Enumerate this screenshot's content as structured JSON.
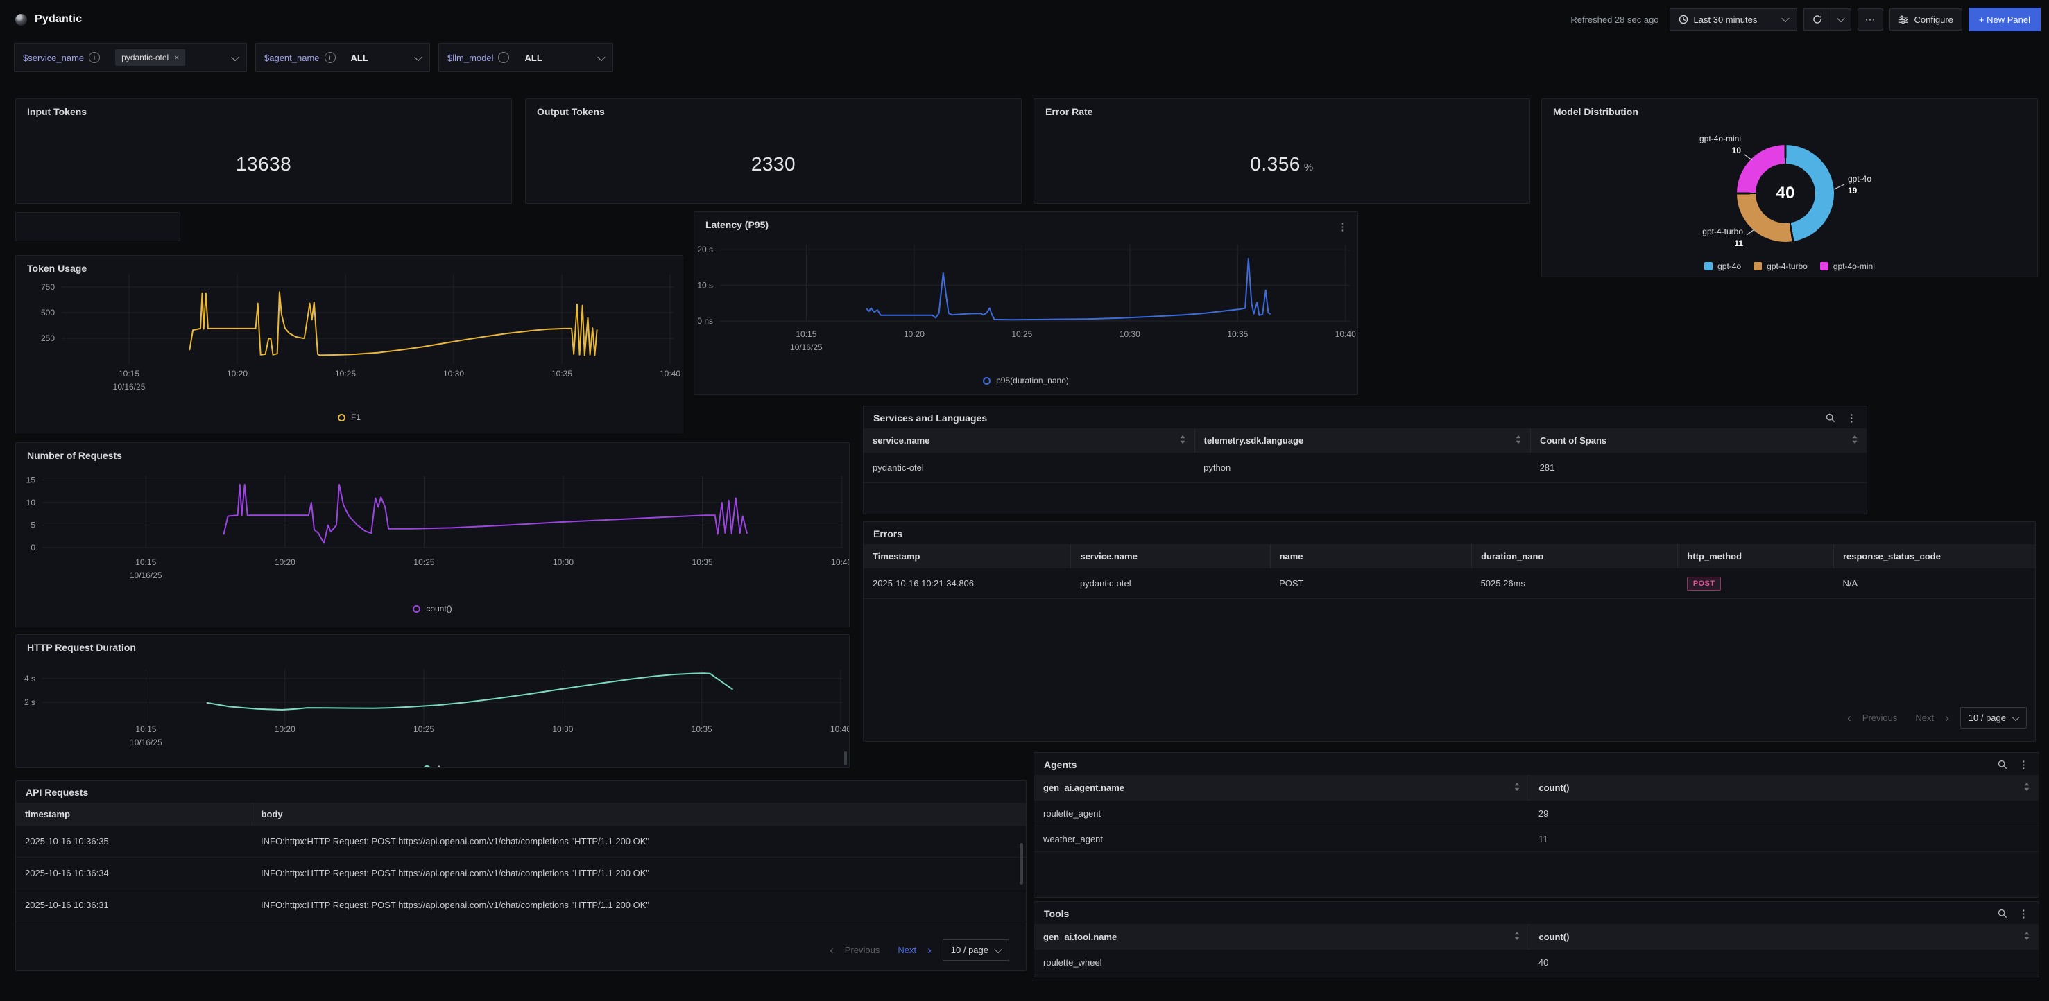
{
  "header": {
    "title": "Pydantic",
    "refreshed": "Refreshed 28 sec ago",
    "time_range": "Last 30 minutes",
    "configure": "Configure",
    "new_panel": "+ New Panel"
  },
  "icons": {
    "more": "⋯",
    "kebab": "⋮",
    "close": "×",
    "prev_chevron": "‹",
    "next_chevron": "›"
  },
  "filters": {
    "service": {
      "label": "$service_name",
      "chip": "pydantic-otel"
    },
    "agent": {
      "label": "$agent_name",
      "value": "ALL"
    },
    "llm": {
      "label": "$llm_model",
      "value": "ALL"
    }
  },
  "stats": {
    "input_tokens": {
      "title": "Input Tokens",
      "value": "13638"
    },
    "output_tokens": {
      "title": "Output Tokens",
      "value": "2330"
    },
    "error_rate": {
      "title": "Error Rate",
      "value": "0.356",
      "unit": "%"
    }
  },
  "chart_data": {
    "model_distribution": {
      "type": "donut",
      "title": "Model Distribution",
      "center_total": "40",
      "slices": [
        {
          "label": "gpt-4o",
          "value": 19,
          "color": "#4fb1e4"
        },
        {
          "label": "gpt-4-turbo",
          "value": 11,
          "color": "#cf9350"
        },
        {
          "label": "gpt-4o-mini",
          "value": 10,
          "color": "#e23fe5"
        }
      ],
      "legend_position": "bottom"
    },
    "token_usage": {
      "type": "line",
      "title": "Token Usage",
      "legend": "F1",
      "color": "#eab839",
      "x_domain": [
        11.89,
        40.16
      ],
      "y_domain": [
        0,
        871
      ],
      "x_ticks": [
        15,
        20,
        25,
        30,
        35,
        40
      ],
      "x_tick_labels": [
        "10:15",
        "10:20",
        "10:25",
        "10:30",
        "10:35",
        "10:40"
      ],
      "x_sub_label": "10/16/25",
      "y_ticks": [
        {
          "v": 250,
          "label": "250"
        },
        {
          "v": 500,
          "label": "500"
        },
        {
          "v": 750,
          "label": "750"
        }
      ],
      "points": [
        [
          17.8,
          140
        ],
        [
          17.95,
          330
        ],
        [
          18.3,
          345
        ],
        [
          18.38,
          690
        ],
        [
          18.45,
          340
        ],
        [
          18.55,
          690
        ],
        [
          18.65,
          345
        ],
        [
          20.85,
          345
        ],
        [
          20.95,
          590
        ],
        [
          21.02,
          300
        ],
        [
          21.08,
          90
        ],
        [
          21.3,
          95
        ],
        [
          21.45,
          250
        ],
        [
          21.55,
          245
        ],
        [
          21.65,
          90
        ],
        [
          21.85,
          100
        ],
        [
          21.95,
          700
        ],
        [
          22.05,
          480
        ],
        [
          22.2,
          350
        ],
        [
          22.4,
          300
        ],
        [
          22.7,
          265
        ],
        [
          23.0,
          252
        ],
        [
          23.1,
          250
        ],
        [
          23.25,
          450
        ],
        [
          23.35,
          590
        ],
        [
          23.45,
          430
        ],
        [
          23.55,
          600
        ],
        [
          23.65,
          300
        ],
        [
          23.72,
          95
        ],
        [
          23.8,
          85
        ],
        [
          24.5,
          88
        ],
        [
          25.5,
          95
        ],
        [
          26.5,
          110
        ],
        [
          27.5,
          135
        ],
        [
          28.5,
          165
        ],
        [
          29.5,
          200
        ],
        [
          30.5,
          235
        ],
        [
          31.5,
          268
        ],
        [
          32.5,
          298
        ],
        [
          33.5,
          322
        ],
        [
          34.3,
          338
        ],
        [
          35.1,
          345
        ],
        [
          35.45,
          345
        ],
        [
          35.55,
          95
        ],
        [
          35.7,
          580
        ],
        [
          35.82,
          90
        ],
        [
          35.95,
          570
        ],
        [
          36.05,
          85
        ],
        [
          36.2,
          450
        ],
        [
          36.3,
          90
        ],
        [
          36.42,
          350
        ],
        [
          36.52,
          85
        ],
        [
          36.62,
          330
        ]
      ]
    },
    "latency_p95": {
      "type": "line",
      "title": "Latency (P95)",
      "legend": "p95(duration_nano)",
      "color": "#3f6bd9",
      "x_domain": [
        11.0,
        40.2
      ],
      "y_domain": [
        0,
        21.4
      ],
      "x_ticks": [
        15,
        20,
        25,
        30,
        35,
        40
      ],
      "x_tick_labels": [
        "10:15",
        "10:20",
        "10:25",
        "10:30",
        "10:35",
        "10:40"
      ],
      "x_sub_label": "10/16/25",
      "y_ticks": [
        {
          "v": 0,
          "label": "0 ns"
        },
        {
          "v": 10,
          "label": "10 s"
        },
        {
          "v": 20,
          "label": "20 s"
        }
      ],
      "points": [
        [
          17.8,
          3.4
        ],
        [
          17.9,
          2.7
        ],
        [
          18.0,
          3.6
        ],
        [
          18.15,
          2.5
        ],
        [
          18.3,
          3.1
        ],
        [
          18.45,
          1.6
        ],
        [
          19.0,
          1.6
        ],
        [
          20.85,
          1.6
        ],
        [
          21.0,
          0.9
        ],
        [
          21.15,
          2.2
        ],
        [
          21.35,
          13.5
        ],
        [
          21.5,
          6.5
        ],
        [
          21.6,
          2.2
        ],
        [
          21.75,
          1.7
        ],
        [
          22.0,
          1.8
        ],
        [
          22.4,
          2.0
        ],
        [
          22.9,
          2.1
        ],
        [
          23.1,
          2.1
        ],
        [
          23.2,
          1.7
        ],
        [
          23.35,
          2.2
        ],
        [
          23.5,
          3.6
        ],
        [
          23.6,
          1.9
        ],
        [
          23.72,
          0.4
        ],
        [
          24.5,
          0.35
        ],
        [
          26,
          0.4
        ],
        [
          28,
          0.55
        ],
        [
          29.5,
          0.8
        ],
        [
          31,
          1.2
        ],
        [
          32.5,
          1.7
        ],
        [
          33.5,
          2.2
        ],
        [
          34.5,
          2.9
        ],
        [
          35.1,
          3.3
        ],
        [
          35.35,
          3.6
        ],
        [
          35.5,
          17.5
        ],
        [
          35.65,
          4.8
        ],
        [
          35.75,
          2.0
        ],
        [
          35.9,
          5.2
        ],
        [
          36.0,
          1.6
        ],
        [
          36.15,
          1.8
        ],
        [
          36.3,
          8.6
        ],
        [
          36.42,
          2.3
        ],
        [
          36.5,
          2.0
        ]
      ]
    },
    "number_of_requests": {
      "type": "line",
      "title": "Number of Requests",
      "legend": "count()",
      "color": "#9c46e0",
      "x_domain": [
        11.28,
        40.07
      ],
      "y_domain": [
        0,
        16
      ],
      "x_ticks": [
        15,
        20,
        25,
        30,
        35,
        40
      ],
      "x_tick_labels": [
        "10:15",
        "10:20",
        "10:25",
        "10:30",
        "10:35",
        "10:40"
      ],
      "x_sub_label": "10/16/25",
      "y_ticks": [
        {
          "v": 0,
          "label": "0"
        },
        {
          "v": 5,
          "label": "5"
        },
        {
          "v": 10,
          "label": "10"
        },
        {
          "v": 15,
          "label": "15"
        }
      ],
      "points": [
        [
          17.8,
          3.0
        ],
        [
          17.95,
          7.0
        ],
        [
          18.3,
          7.2
        ],
        [
          18.38,
          14.0
        ],
        [
          18.45,
          7.2
        ],
        [
          18.55,
          14.0
        ],
        [
          18.65,
          7.2
        ],
        [
          20.85,
          7.2
        ],
        [
          20.95,
          10.0
        ],
        [
          21.05,
          4.0
        ],
        [
          21.2,
          3.2
        ],
        [
          21.4,
          1.0
        ],
        [
          21.55,
          5.0
        ],
        [
          21.65,
          3.5
        ],
        [
          21.85,
          5.0
        ],
        [
          21.95,
          14.0
        ],
        [
          22.1,
          9.5
        ],
        [
          22.3,
          7.0
        ],
        [
          22.6,
          5.0
        ],
        [
          22.9,
          3.6
        ],
        [
          23.1,
          3.2
        ],
        [
          23.25,
          11.0
        ],
        [
          23.35,
          9.0
        ],
        [
          23.45,
          11.2
        ],
        [
          23.6,
          9.0
        ],
        [
          23.72,
          4.2
        ],
        [
          24.5,
          4.2
        ],
        [
          26,
          4.4
        ],
        [
          28,
          5.0
        ],
        [
          30,
          5.7
        ],
        [
          32,
          6.3
        ],
        [
          34,
          6.9
        ],
        [
          35.1,
          7.2
        ],
        [
          35.45,
          7.2
        ],
        [
          35.55,
          3.0
        ],
        [
          35.7,
          10.0
        ],
        [
          35.82,
          3.2
        ],
        [
          35.95,
          10.5
        ],
        [
          36.05,
          3.1
        ],
        [
          36.2,
          11.0
        ],
        [
          36.35,
          3.2
        ],
        [
          36.45,
          7.0
        ],
        [
          36.6,
          3.2
        ]
      ]
    },
    "http_request_duration": {
      "type": "line",
      "title": "HTTP Request Duration",
      "legend": "A",
      "color": "#7bdbbf",
      "x_domain": [
        11.27,
        40.1
      ],
      "y_domain": [
        0,
        4.76
      ],
      "x_ticks": [
        15,
        20,
        25,
        30,
        35,
        40
      ],
      "x_tick_labels": [
        "10:15",
        "10:20",
        "10:25",
        "10:30",
        "10:35",
        "10:40"
      ],
      "x_sub_label": "10/16/25",
      "y_ticks": [
        {
          "v": 2,
          "label": "2 s"
        },
        {
          "v": 4,
          "label": "4 s"
        }
      ],
      "points": [
        [
          17.2,
          1.95
        ],
        [
          18.0,
          1.62
        ],
        [
          19.0,
          1.42
        ],
        [
          19.9,
          1.35
        ],
        [
          20.4,
          1.42
        ],
        [
          20.8,
          1.52
        ],
        [
          21.5,
          1.51
        ],
        [
          22.5,
          1.49
        ],
        [
          23.2,
          1.48
        ],
        [
          23.8,
          1.52
        ],
        [
          24.5,
          1.6
        ],
        [
          25.5,
          1.75
        ],
        [
          26.5,
          1.98
        ],
        [
          27.5,
          2.28
        ],
        [
          28.5,
          2.6
        ],
        [
          29.5,
          2.95
        ],
        [
          30.5,
          3.3
        ],
        [
          31.5,
          3.65
        ],
        [
          32.5,
          3.97
        ],
        [
          33.3,
          4.2
        ],
        [
          34.0,
          4.35
        ],
        [
          34.7,
          4.43
        ],
        [
          35.1,
          4.45
        ],
        [
          35.3,
          4.42
        ],
        [
          36.1,
          3.1
        ]
      ]
    }
  },
  "tables": {
    "services": {
      "title": "Services and Languages",
      "columns": [
        "service.name",
        "telemetry.sdk.language",
        "Count of Spans"
      ],
      "rows": [
        [
          "pydantic-otel",
          "python",
          "281"
        ]
      ]
    },
    "errors": {
      "title": "Errors",
      "columns": [
        "Timestamp",
        "service.name",
        "name",
        "duration_nano",
        "http_method",
        "response_status_code"
      ],
      "rows": [
        [
          "2025-10-16 10:21:34.806",
          "pydantic-otel",
          "POST",
          "5025.26ms",
          "POST",
          "N/A"
        ]
      ]
    },
    "api_requests": {
      "title": "API Requests",
      "columns": [
        "timestamp",
        "body"
      ],
      "rows": [
        [
          "2025-10-16 10:36:35",
          "INFO:httpx:HTTP Request: POST https://api.openai.com/v1/chat/completions \"HTTP/1.1 200 OK\""
        ],
        [
          "2025-10-16 10:36:34",
          "INFO:httpx:HTTP Request: POST https://api.openai.com/v1/chat/completions \"HTTP/1.1 200 OK\""
        ],
        [
          "2025-10-16 10:36:31",
          "INFO:httpx:HTTP Request: POST https://api.openai.com/v1/chat/completions \"HTTP/1.1 200 OK\""
        ]
      ]
    },
    "agents": {
      "title": "Agents",
      "columns": [
        "gen_ai.agent.name",
        "count()"
      ],
      "rows": [
        [
          "roulette_agent",
          "29"
        ],
        [
          "weather_agent",
          "11"
        ]
      ]
    },
    "tools": {
      "title": "Tools",
      "columns": [
        "gen_ai.tool.name",
        "count()"
      ],
      "rows": [
        [
          "roulette_wheel",
          "40"
        ]
      ]
    }
  },
  "pagination": {
    "previous": "Previous",
    "next": "Next",
    "page_size": "10 / page"
  }
}
